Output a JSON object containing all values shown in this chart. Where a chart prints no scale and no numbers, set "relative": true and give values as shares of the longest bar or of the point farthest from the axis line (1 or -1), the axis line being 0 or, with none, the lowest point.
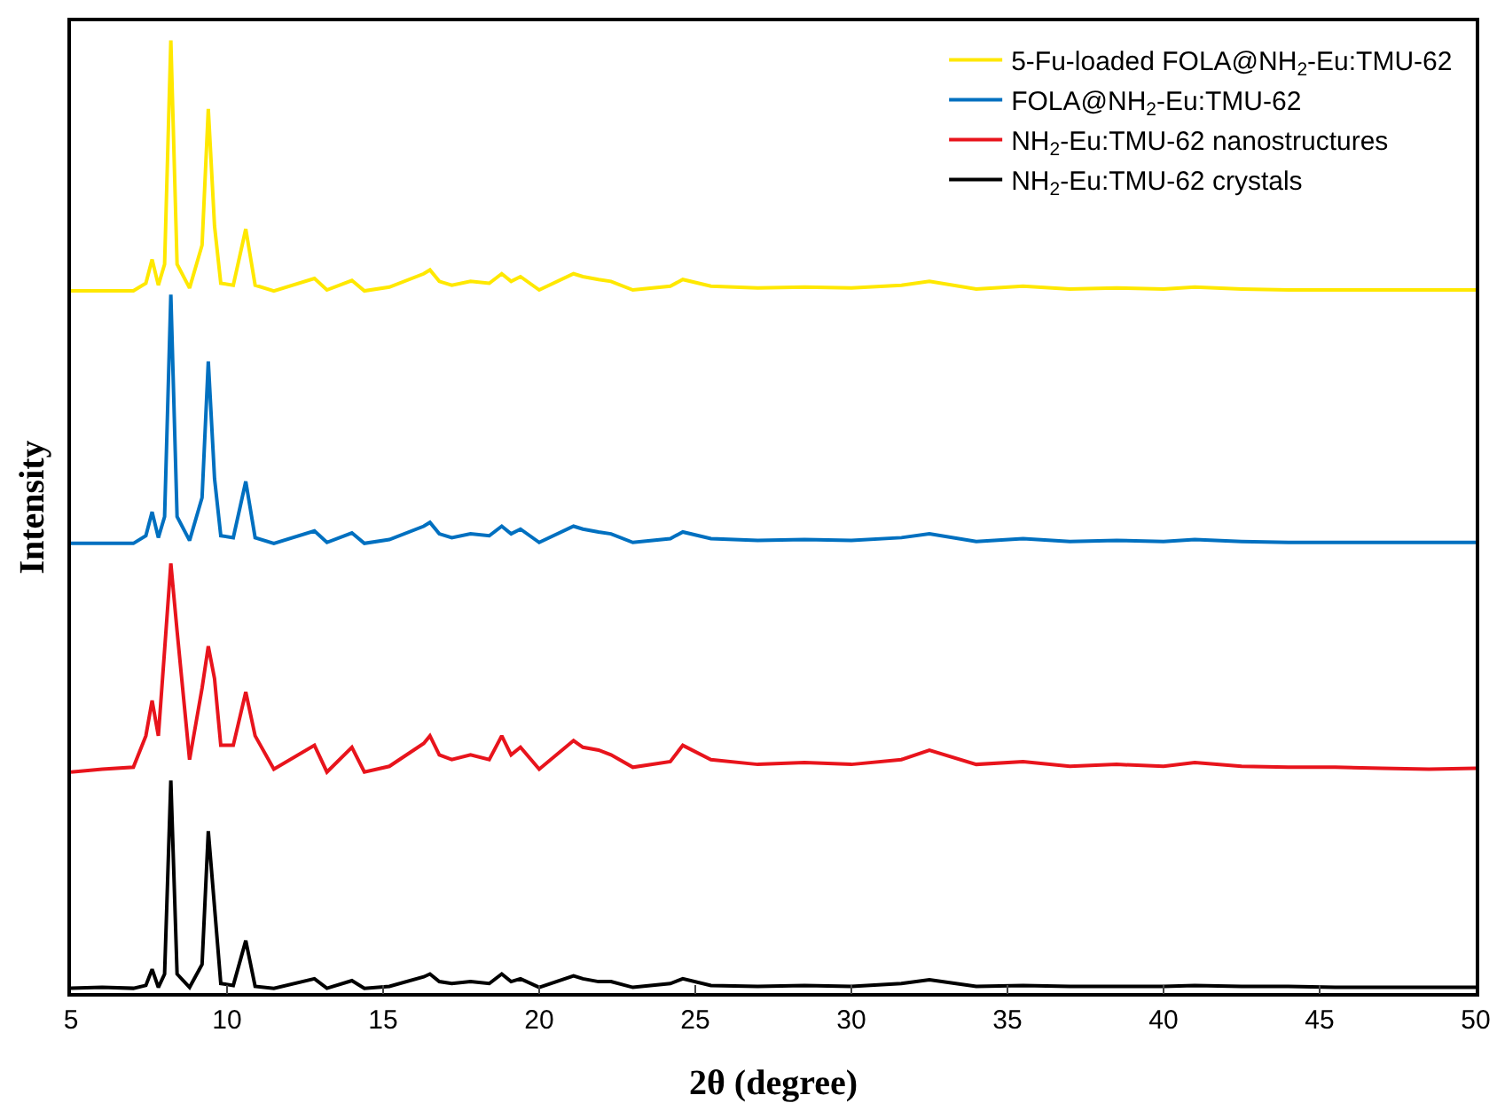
{
  "chart_data": {
    "type": "line",
    "relative": true,
    "xlabel": "2θ (degree)",
    "ylabel": "Intensity",
    "xlim": [
      5,
      50
    ],
    "xticks": [
      5,
      10,
      15,
      20,
      25,
      30,
      35,
      40,
      45,
      50
    ],
    "grid": false,
    "legend": "top right",
    "marker": "none",
    "line_style": "solid",
    "tick_labels": "x",
    "x": [
      5,
      6,
      7,
      7.4,
      7.6,
      7.8,
      8.0,
      8.2,
      8.4,
      8.8,
      9.2,
      9.4,
      9.6,
      9.8,
      10.2,
      10.6,
      10.9,
      11.5,
      12.8,
      13.2,
      14.0,
      14.4,
      15.2,
      16.3,
      16.5,
      16.8,
      17.2,
      17.8,
      18.4,
      18.8,
      19.1,
      19.4,
      20,
      21.1,
      21.4,
      21.9,
      22.3,
      23,
      24.2,
      24.6,
      25.5,
      27,
      28.5,
      30,
      31.6,
      32.5,
      34,
      35.5,
      37,
      38.5,
      40,
      41,
      42.5,
      44,
      45.5,
      47,
      48.5,
      50
    ],
    "series": [
      {
        "name": "5-Fu-loaded FOLA@NH$_{2}$-Eu:TMU-62",
        "color": "#ffe800",
        "values": [
          0.737,
          0.737,
          0.737,
          0.745,
          0.77,
          0.743,
          0.765,
          1.0,
          0.765,
          0.74,
          0.785,
          0.928,
          0.805,
          0.745,
          0.743,
          0.802,
          0.743,
          0.737,
          0.75,
          0.738,
          0.748,
          0.737,
          0.741,
          0.755,
          0.759,
          0.747,
          0.743,
          0.747,
          0.745,
          0.755,
          0.747,
          0.752,
          0.738,
          0.755,
          0.752,
          0.749,
          0.747,
          0.738,
          0.742,
          0.749,
          0.742,
          0.74,
          0.741,
          0.74,
          0.743,
          0.747,
          0.739,
          0.742,
          0.739,
          0.74,
          0.739,
          0.741,
          0.739,
          0.738,
          0.738,
          0.738,
          0.738,
          0.738
        ]
      },
      {
        "name": "FOLA@NH$_{2}$-Eu:TMU-62",
        "color": "#0070c0",
        "values": [
          0.472,
          0.472,
          0.472,
          0.48,
          0.505,
          0.478,
          0.5,
          0.733,
          0.5,
          0.475,
          0.52,
          0.663,
          0.54,
          0.48,
          0.478,
          0.537,
          0.478,
          0.472,
          0.485,
          0.473,
          0.483,
          0.472,
          0.476,
          0.49,
          0.494,
          0.482,
          0.478,
          0.482,
          0.48,
          0.49,
          0.482,
          0.487,
          0.473,
          0.49,
          0.487,
          0.484,
          0.482,
          0.473,
          0.477,
          0.484,
          0.477,
          0.475,
          0.476,
          0.475,
          0.478,
          0.482,
          0.474,
          0.477,
          0.474,
          0.475,
          0.474,
          0.476,
          0.474,
          0.473,
          0.473,
          0.473,
          0.473,
          0.473
        ]
      },
      {
        "name": "NH$_{2}$-Eu:TMU-62 nanostructures",
        "color": "#e8141c",
        "values": [
          0.232,
          0.235,
          0.237,
          0.27,
          0.307,
          0.27,
          0.36,
          0.451,
          0.38,
          0.245,
          0.32,
          0.364,
          0.33,
          0.26,
          0.26,
          0.316,
          0.27,
          0.235,
          0.26,
          0.232,
          0.258,
          0.232,
          0.238,
          0.262,
          0.27,
          0.25,
          0.245,
          0.25,
          0.245,
          0.27,
          0.25,
          0.258,
          0.235,
          0.265,
          0.258,
          0.255,
          0.25,
          0.237,
          0.243,
          0.26,
          0.245,
          0.24,
          0.242,
          0.24,
          0.245,
          0.255,
          0.24,
          0.243,
          0.238,
          0.24,
          0.238,
          0.242,
          0.238,
          0.237,
          0.237,
          0.236,
          0.235,
          0.236
        ]
      },
      {
        "name": "NH$_{2}$-Eu:TMU-62 crystals",
        "color": "#000000",
        "values": [
          0.005,
          0.006,
          0.005,
          0.008,
          0.025,
          0.006,
          0.02,
          0.223,
          0.02,
          0.006,
          0.03,
          0.17,
          0.09,
          0.01,
          0.008,
          0.055,
          0.007,
          0.005,
          0.015,
          0.005,
          0.013,
          0.005,
          0.007,
          0.017,
          0.02,
          0.012,
          0.01,
          0.012,
          0.01,
          0.02,
          0.012,
          0.015,
          0.006,
          0.018,
          0.015,
          0.012,
          0.012,
          0.006,
          0.01,
          0.015,
          0.008,
          0.007,
          0.008,
          0.007,
          0.01,
          0.014,
          0.007,
          0.008,
          0.007,
          0.007,
          0.007,
          0.008,
          0.007,
          0.007,
          0.006,
          0.006,
          0.006,
          0.006
        ]
      }
    ]
  }
}
